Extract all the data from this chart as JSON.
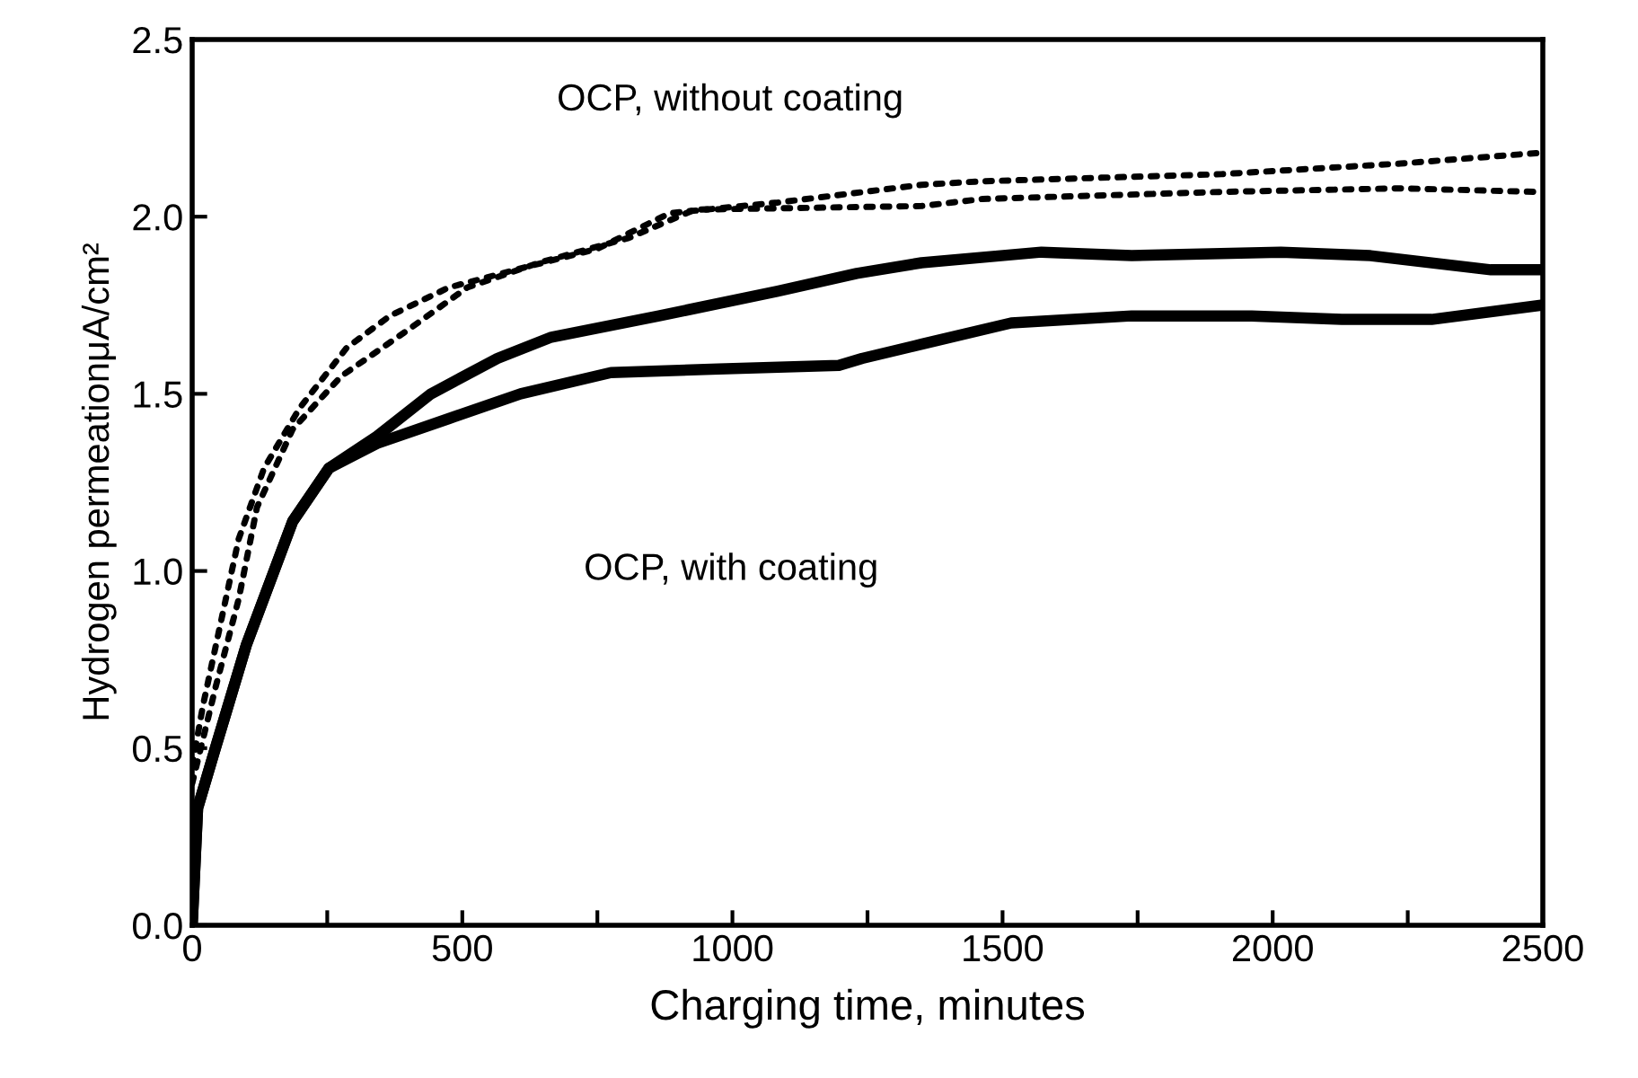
{
  "chart_data": {
    "type": "line",
    "xlabel": "Charging time, minutes",
    "ylabel": "Hydrogen permeationμA/cm²",
    "xlim": [
      0,
      2500
    ],
    "ylim": [
      0,
      2.5
    ],
    "xticks": [
      0,
      {
        "value": 250,
        "label": null
      },
      500,
      {
        "value": 750,
        "label": null
      },
      1000,
      {
        "value": 1250,
        "label": null
      },
      1500,
      {
        "value": 1750,
        "label": null
      },
      2000,
      {
        "value": 2250,
        "label": null
      },
      2500
    ],
    "yticks": [
      {
        "value": 0,
        "label": "0.0"
      },
      {
        "value": 0.5,
        "label": "0.5"
      },
      {
        "value": 1.0,
        "label": "1.0"
      },
      {
        "value": 1.5,
        "label": "1.5"
      },
      {
        "value": 2.0,
        "label": "2.0"
      },
      {
        "value": 2.5,
        "label": "2.5"
      }
    ],
    "grid": false,
    "legend": false,
    "annotations": [
      "OCP, without coating",
      "OCP, with coating"
    ],
    "series": [
      {
        "color": "#000000",
        "line_style": "dotted",
        "x": [
          0,
          20,
          86,
          133,
          199,
          286,
          366,
          475,
          598,
          751,
          884,
          1084,
          1350,
          1463,
          1905,
          2237,
          2493
        ],
        "values": [
          0.45,
          0.62,
          1.09,
          1.29,
          1.46,
          1.63,
          1.72,
          1.8,
          1.85,
          1.91,
          2.01,
          2.04,
          2.09,
          2.1,
          2.12,
          2.15,
          2.18
        ]
      },
      {
        "color": "#000000",
        "line_style": "dotted",
        "x": [
          0,
          43,
          86,
          120,
          186,
          276,
          399,
          509,
          642,
          808,
          930,
          1350,
          1463,
          1905,
          2237,
          2487
        ],
        "values": [
          0.4,
          0.67,
          0.92,
          1.18,
          1.4,
          1.55,
          1.68,
          1.8,
          1.87,
          1.94,
          2.02,
          2.03,
          2.05,
          2.07,
          2.08,
          2.07
        ]
      },
      {
        "color": "#000000",
        "line_style": "solid",
        "x": [
          0,
          10,
          43,
          100,
          186,
          253,
          342,
          442,
          565,
          665,
          864,
          1084,
          1230,
          1350,
          1572,
          1739,
          2015,
          2181,
          2404,
          2497
        ],
        "values": [
          0,
          0.33,
          0.5,
          0.79,
          1.14,
          1.29,
          1.38,
          1.5,
          1.6,
          1.66,
          1.72,
          1.79,
          1.84,
          1.87,
          1.9,
          1.89,
          1.9,
          1.89,
          1.85,
          1.85
        ]
      },
      {
        "color": "#000000",
        "line_style": "solid",
        "x": [
          0,
          10,
          43,
          100,
          186,
          253,
          342,
          475,
          608,
          775,
          974,
          1197,
          1240,
          1350,
          1516,
          1739,
          1961,
          2128,
          2294,
          2497
        ],
        "values": [
          0,
          0.33,
          0.5,
          0.79,
          1.14,
          1.29,
          1.36,
          1.43,
          1.5,
          1.56,
          1.57,
          1.58,
          1.6,
          1.64,
          1.7,
          1.72,
          1.72,
          1.71,
          1.71,
          1.75
        ]
      }
    ]
  }
}
